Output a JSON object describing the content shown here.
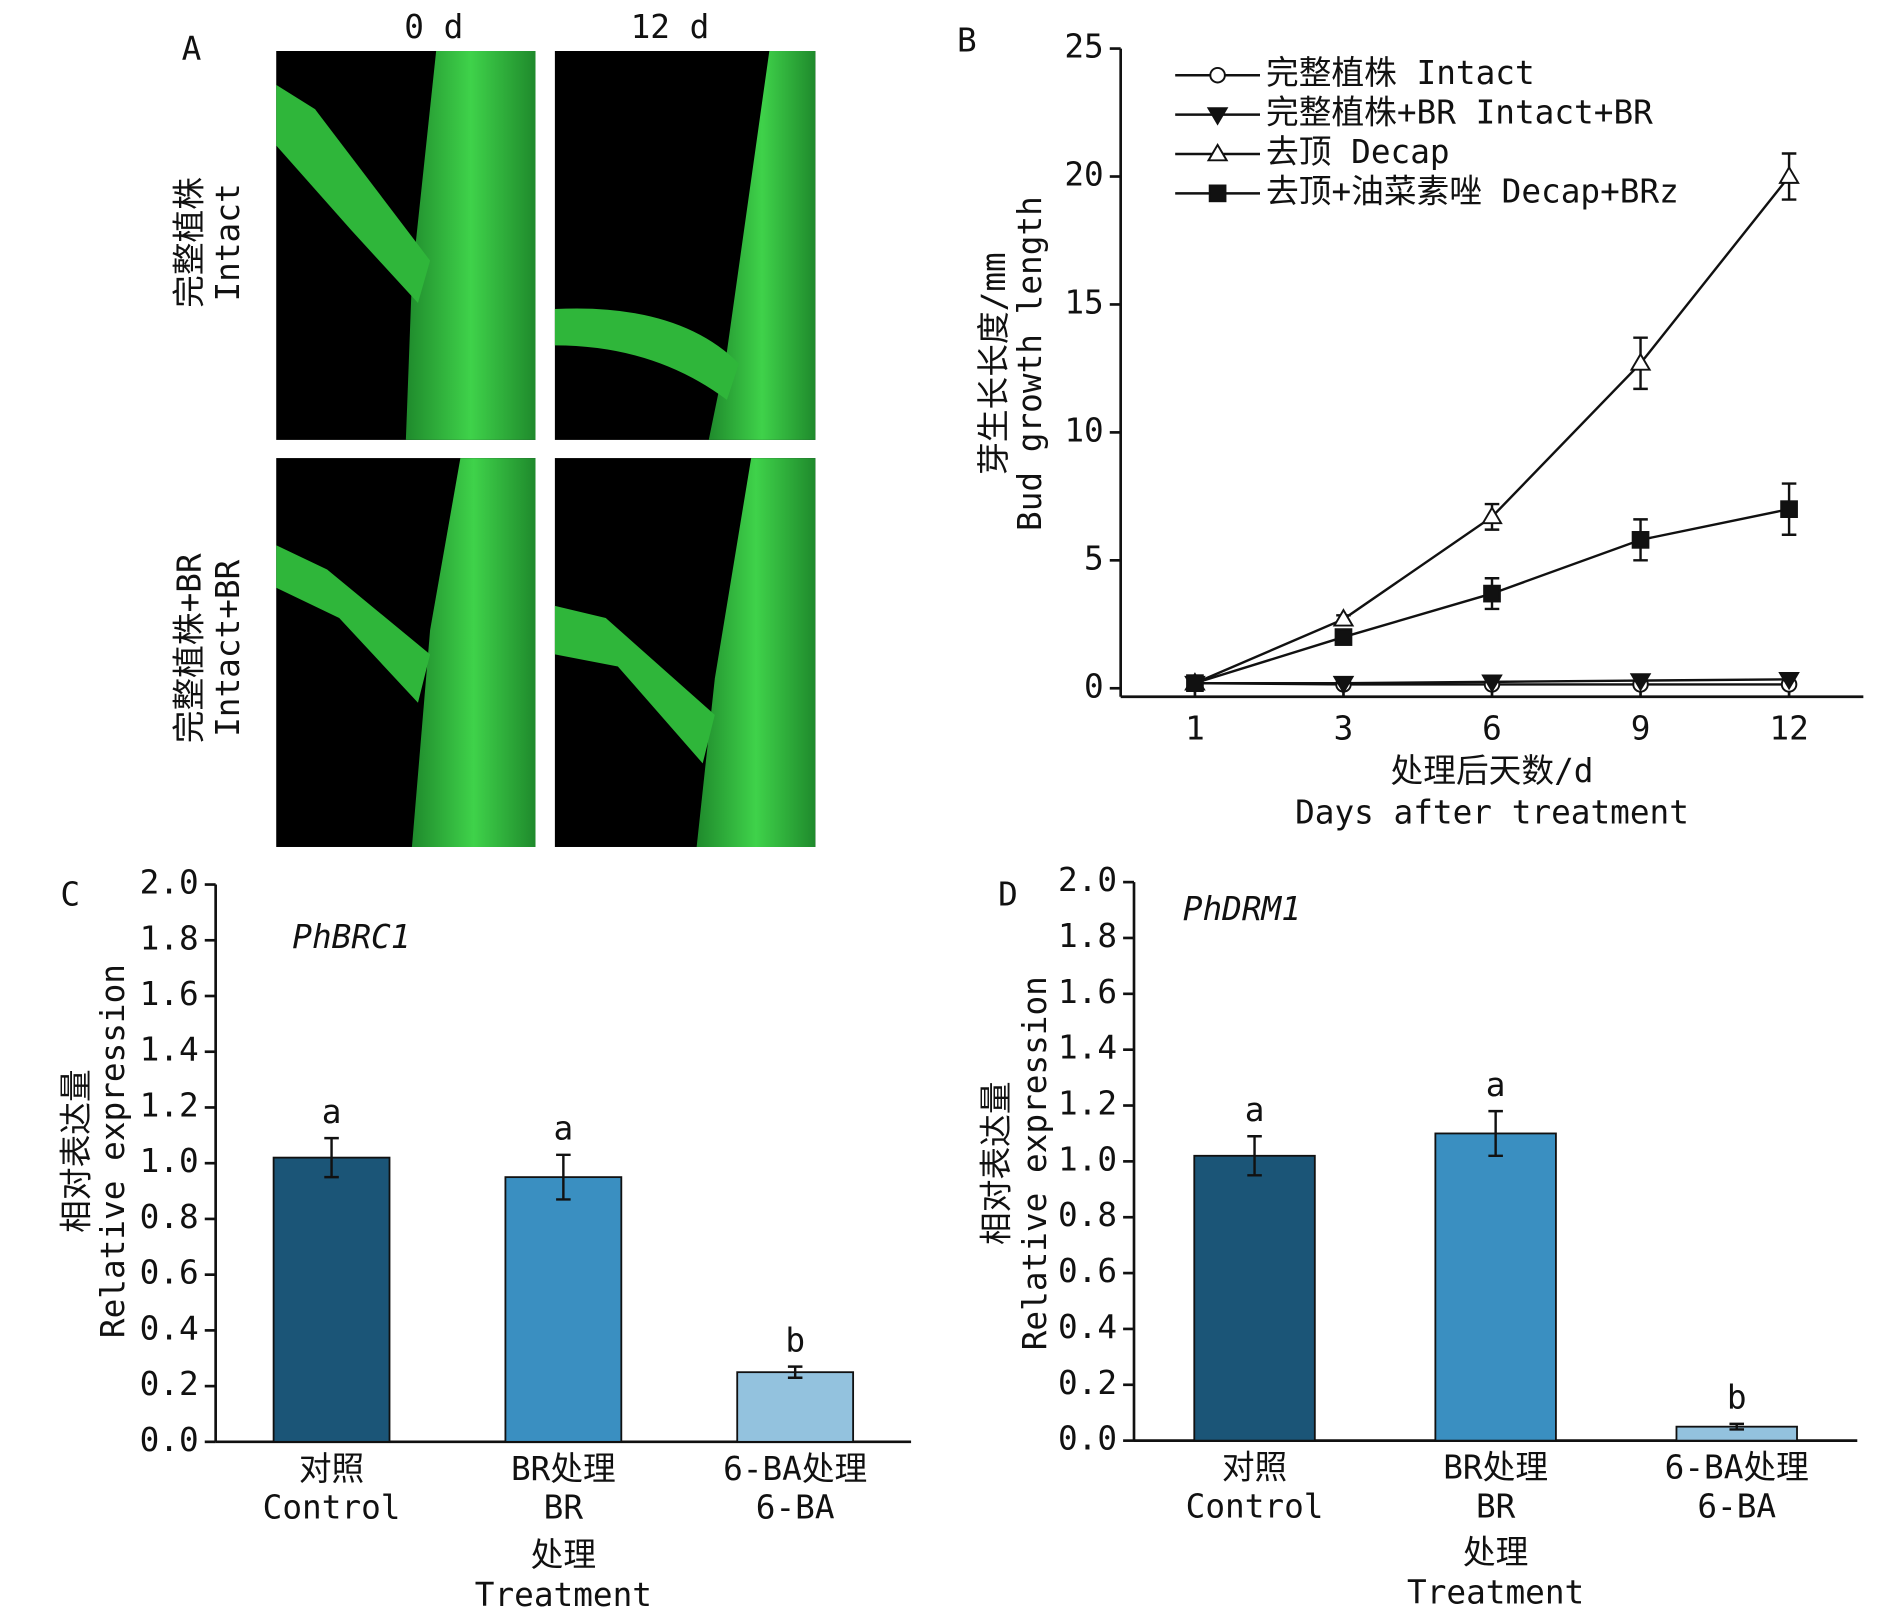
{
  "panel_a": {
    "label": "A",
    "columns": [
      "0 d",
      "12 d"
    ],
    "rows": [
      [
        "完整植株",
        "Intact"
      ],
      [
        "完整植株+BR",
        "Intact+BR"
      ]
    ]
  },
  "chart_data": [
    {
      "type": "line",
      "label": "B",
      "categories": [
        "1",
        "3",
        "6",
        "9",
        "12"
      ],
      "ylabel": [
        "芽生长长度/mm",
        "Bud growth length"
      ],
      "xlabel": [
        "处理后天数/d",
        "Days after treatment"
      ],
      "ylim": [
        0,
        25
      ],
      "yticks": [
        0,
        5,
        10,
        15,
        20,
        25
      ],
      "series": [
        {
          "name": "完整植株 Intact",
          "color": "#111111",
          "marker": "circle",
          "values": [
            0.2,
            0.15,
            0.15,
            0.15,
            0.15
          ],
          "errors": [
            0,
            0,
            0,
            0,
            0
          ]
        },
        {
          "name": "完整植株+BR Intact+BR",
          "color": "#111111",
          "marker": "triangle-down",
          "values": [
            0.2,
            0.2,
            0.25,
            0.3,
            0.35
          ],
          "errors": [
            0,
            0,
            0,
            0,
            0
          ]
        },
        {
          "name": "去顶 Decap",
          "color": "#111111",
          "marker": "triangle-up",
          "values": [
            0.2,
            2.7,
            6.7,
            12.7,
            20.0
          ],
          "errors": [
            0,
            0.15,
            0.5,
            1.0,
            0.9
          ]
        },
        {
          "name": "去顶+油菜素唑 Decap+BRz",
          "color": "#111111",
          "marker": "square",
          "values": [
            0.2,
            2.0,
            3.7,
            5.8,
            7.0
          ],
          "errors": [
            0,
            0.1,
            0.6,
            0.8,
            1.0
          ]
        }
      ]
    },
    {
      "type": "bar",
      "label": "C",
      "title": "PhBRC1",
      "categories": [
        [
          "对照",
          "Control"
        ],
        [
          "BR处理",
          "BR"
        ],
        [
          "6-BA处理",
          "6-BA"
        ]
      ],
      "ylabel": [
        "相对表达量",
        "Relative expression"
      ],
      "xlabel": [
        "处理",
        "Treatment"
      ],
      "ylim": [
        0,
        2
      ],
      "yticks": [
        {
          "value": 0,
          "label": "0.0"
        },
        {
          "value": 0.2,
          "label": "0.2"
        },
        {
          "value": 0.4,
          "label": "0.4"
        },
        {
          "value": 0.6,
          "label": "0.6"
        },
        {
          "value": 0.8,
          "label": "0.8"
        },
        {
          "value": 1,
          "label": "1.0"
        },
        {
          "value": 1.2,
          "label": "1.2"
        },
        {
          "value": 1.4,
          "label": "1.4"
        },
        {
          "value": 1.6,
          "label": "1.6"
        },
        {
          "value": 1.8,
          "label": "1.8"
        },
        {
          "value": 2,
          "label": "2.0"
        }
      ],
      "values": [
        1.02,
        0.95,
        0.25
      ],
      "errors": [
        0.07,
        0.08,
        0.02
      ],
      "colors": [
        "#1b5577",
        "#3a8fc1",
        "#93c2de"
      ],
      "annotations": [
        "a",
        "a",
        "b"
      ]
    },
    {
      "type": "bar",
      "label": "D",
      "title": "PhDRM1",
      "categories": [
        [
          "对照",
          "Control"
        ],
        [
          "BR处理",
          "BR"
        ],
        [
          "6-BA处理",
          "6-BA"
        ]
      ],
      "ylabel": [
        "相对表达量",
        "Relative expression"
      ],
      "xlabel": [
        "处理",
        "Treatment"
      ],
      "ylim": [
        0,
        2
      ],
      "yticks": [
        {
          "value": 0,
          "label": "0.0"
        },
        {
          "value": 0.2,
          "label": "0.2"
        },
        {
          "value": 0.4,
          "label": "0.4"
        },
        {
          "value": 0.6,
          "label": "0.6"
        },
        {
          "value": 0.8,
          "label": "0.8"
        },
        {
          "value": 1,
          "label": "1.0"
        },
        {
          "value": 1.2,
          "label": "1.2"
        },
        {
          "value": 1.4,
          "label": "1.4"
        },
        {
          "value": 1.6,
          "label": "1.6"
        },
        {
          "value": 1.8,
          "label": "1.8"
        },
        {
          "value": 2,
          "label": "2.0"
        }
      ],
      "values": [
        1.02,
        1.1,
        0.05
      ],
      "errors": [
        0.07,
        0.08,
        0.01
      ],
      "colors": [
        "#1b5577",
        "#3a8fc1",
        "#93c2de"
      ],
      "annotations": [
        "a",
        "a",
        "b"
      ]
    }
  ]
}
